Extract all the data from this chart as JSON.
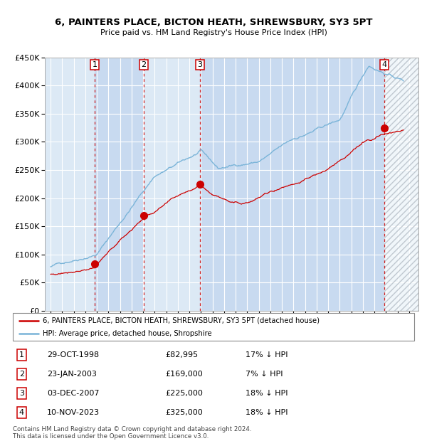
{
  "title1": "6, PAINTERS PLACE, BICTON HEATH, SHREWSBURY, SY3 5PT",
  "title2": "Price paid vs. HM Land Registry's House Price Index (HPI)",
  "sale_dates_fmt": [
    "29-OCT-1998",
    "23-JAN-2003",
    "03-DEC-2007",
    "10-NOV-2023"
  ],
  "sale_prices": [
    82995,
    169000,
    225000,
    325000
  ],
  "sale_prices_fmt": [
    "£82,995",
    "£169,000",
    "£225,000",
    "£325,000"
  ],
  "sale_labels": [
    "1",
    "2",
    "3",
    "4"
  ],
  "sale_year_floats": [
    1998.831,
    2003.058,
    2007.919,
    2023.861
  ],
  "sale_hpi_pct": [
    "17% ↓ HPI",
    "7% ↓ HPI",
    "18% ↓ HPI",
    "18% ↓ HPI"
  ],
  "legend1": "6, PAINTERS PLACE, BICTON HEATH, SHREWSBURY, SY3 5PT (detached house)",
  "legend2": "HPI: Average price, detached house, Shropshire",
  "footer": "Contains HM Land Registry data © Crown copyright and database right 2024.\nThis data is licensed under the Open Government Licence v3.0.",
  "hpi_color": "#7ab4d8",
  "sale_color": "#cc0000",
  "plot_bg": "#dce9f5",
  "grid_color": "#ffffff",
  "hatch_color": "#c0c8d0",
  "ylim": [
    0,
    450000
  ],
  "yticks": [
    0,
    50000,
    100000,
    150000,
    200000,
    250000,
    300000,
    350000,
    400000,
    450000
  ],
  "ytick_labels": [
    "£0",
    "£50K",
    "£100K",
    "£150K",
    "£200K",
    "£250K",
    "£300K",
    "£350K",
    "£400K",
    "£450K"
  ],
  "xlim_start": 1994.5,
  "xlim_end": 2026.8,
  "band_colors": [
    "#dce9f5",
    "#c8daf0",
    "#dce9f5",
    "#c8daf0"
  ]
}
